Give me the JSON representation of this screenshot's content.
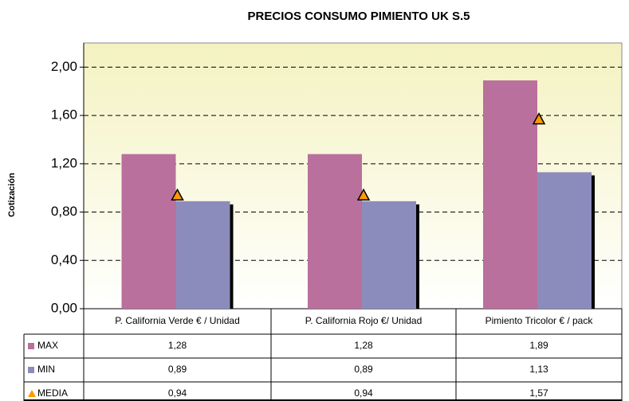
{
  "chart_data": {
    "type": "bar",
    "title": "PRECIOS CONSUMO PIMIENTO UK S.5",
    "y_label": "Cotización",
    "categories": [
      "P. California Verde € / Unidad",
      "P. California Rojo €/ Unidad",
      "Pimiento Tricolor € / pack"
    ],
    "series": [
      {
        "name": "MAX",
        "color": "#b9709c",
        "values": [
          1.28,
          1.28,
          1.89
        ],
        "value_labels": [
          "1,28",
          "1,28",
          "1,89"
        ]
      },
      {
        "name": "MIN",
        "color": "#8c8cbc",
        "values": [
          0.89,
          0.89,
          1.13
        ],
        "value_labels": [
          "0,89",
          "0,89",
          "1,13"
        ]
      },
      {
        "name": "MEDIA",
        "color": "#ff9900",
        "marker": "triangle",
        "values": [
          0.94,
          0.94,
          1.57
        ],
        "value_labels": [
          "0,94",
          "0,94",
          "1,57"
        ]
      }
    ],
    "ylim": [
      0,
      2.2
    ],
    "yticks": [
      {
        "value": 0,
        "label": "0,00"
      },
      {
        "value": 0.4,
        "label": "0,40"
      },
      {
        "value": 0.8,
        "label": "0,80"
      },
      {
        "value": 1.2,
        "label": "1,20"
      },
      {
        "value": 1.6,
        "label": "1,60"
      },
      {
        "value": 2,
        "label": "2,00"
      }
    ],
    "grid": true
  }
}
